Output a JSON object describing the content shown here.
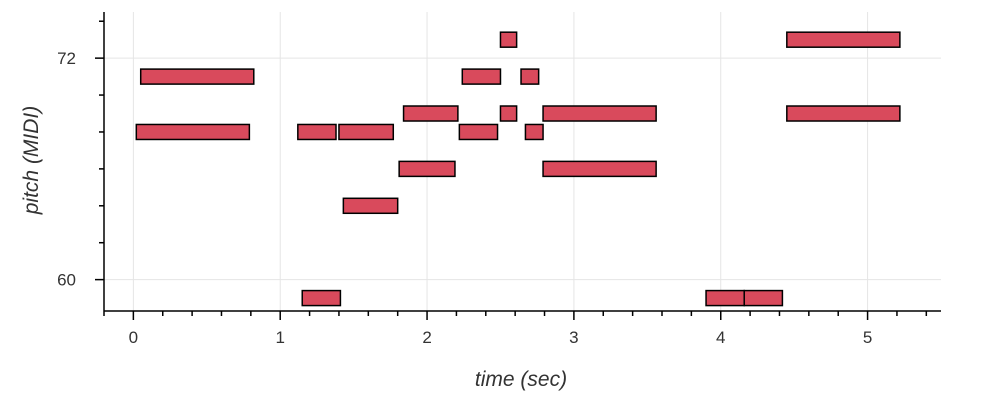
{
  "chart_data": {
    "type": "piano-roll",
    "xlabel": "time (sec)",
    "ylabel": "pitch (MIDI)",
    "xlim": [
      -0.2,
      5.5
    ],
    "ylim": [
      58.3,
      74.5
    ],
    "x_ticks": [
      0,
      1,
      2,
      3,
      4,
      5
    ],
    "x_minor_step": 0.2,
    "y_ticks": [
      60,
      72
    ],
    "y_minor_step": 2,
    "grid": true,
    "note_color": "#d94a5c",
    "note_edge_color": "#000000",
    "notes": [
      {
        "start": 0.05,
        "end": 0.82,
        "pitch": 71
      },
      {
        "start": 0.02,
        "end": 0.79,
        "pitch": 68
      },
      {
        "start": 1.12,
        "end": 1.38,
        "pitch": 68
      },
      {
        "start": 1.4,
        "end": 1.77,
        "pitch": 68
      },
      {
        "start": 1.15,
        "end": 1.41,
        "pitch": 59
      },
      {
        "start": 1.43,
        "end": 1.8,
        "pitch": 64
      },
      {
        "start": 1.81,
        "end": 2.19,
        "pitch": 66
      },
      {
        "start": 1.84,
        "end": 2.21,
        "pitch": 69
      },
      {
        "start": 2.22,
        "end": 2.48,
        "pitch": 68
      },
      {
        "start": 2.24,
        "end": 2.5,
        "pitch": 71
      },
      {
        "start": 2.5,
        "end": 2.61,
        "pitch": 73
      },
      {
        "start": 2.5,
        "end": 2.61,
        "pitch": 69
      },
      {
        "start": 2.64,
        "end": 2.76,
        "pitch": 71
      },
      {
        "start": 2.67,
        "end": 2.79,
        "pitch": 68
      },
      {
        "start": 2.79,
        "end": 3.56,
        "pitch": 69
      },
      {
        "start": 2.79,
        "end": 3.56,
        "pitch": 66
      },
      {
        "start": 3.9,
        "end": 4.16,
        "pitch": 59
      },
      {
        "start": 4.16,
        "end": 4.42,
        "pitch": 59
      },
      {
        "start": 4.45,
        "end": 5.22,
        "pitch": 73
      },
      {
        "start": 4.45,
        "end": 5.22,
        "pitch": 69
      }
    ]
  }
}
